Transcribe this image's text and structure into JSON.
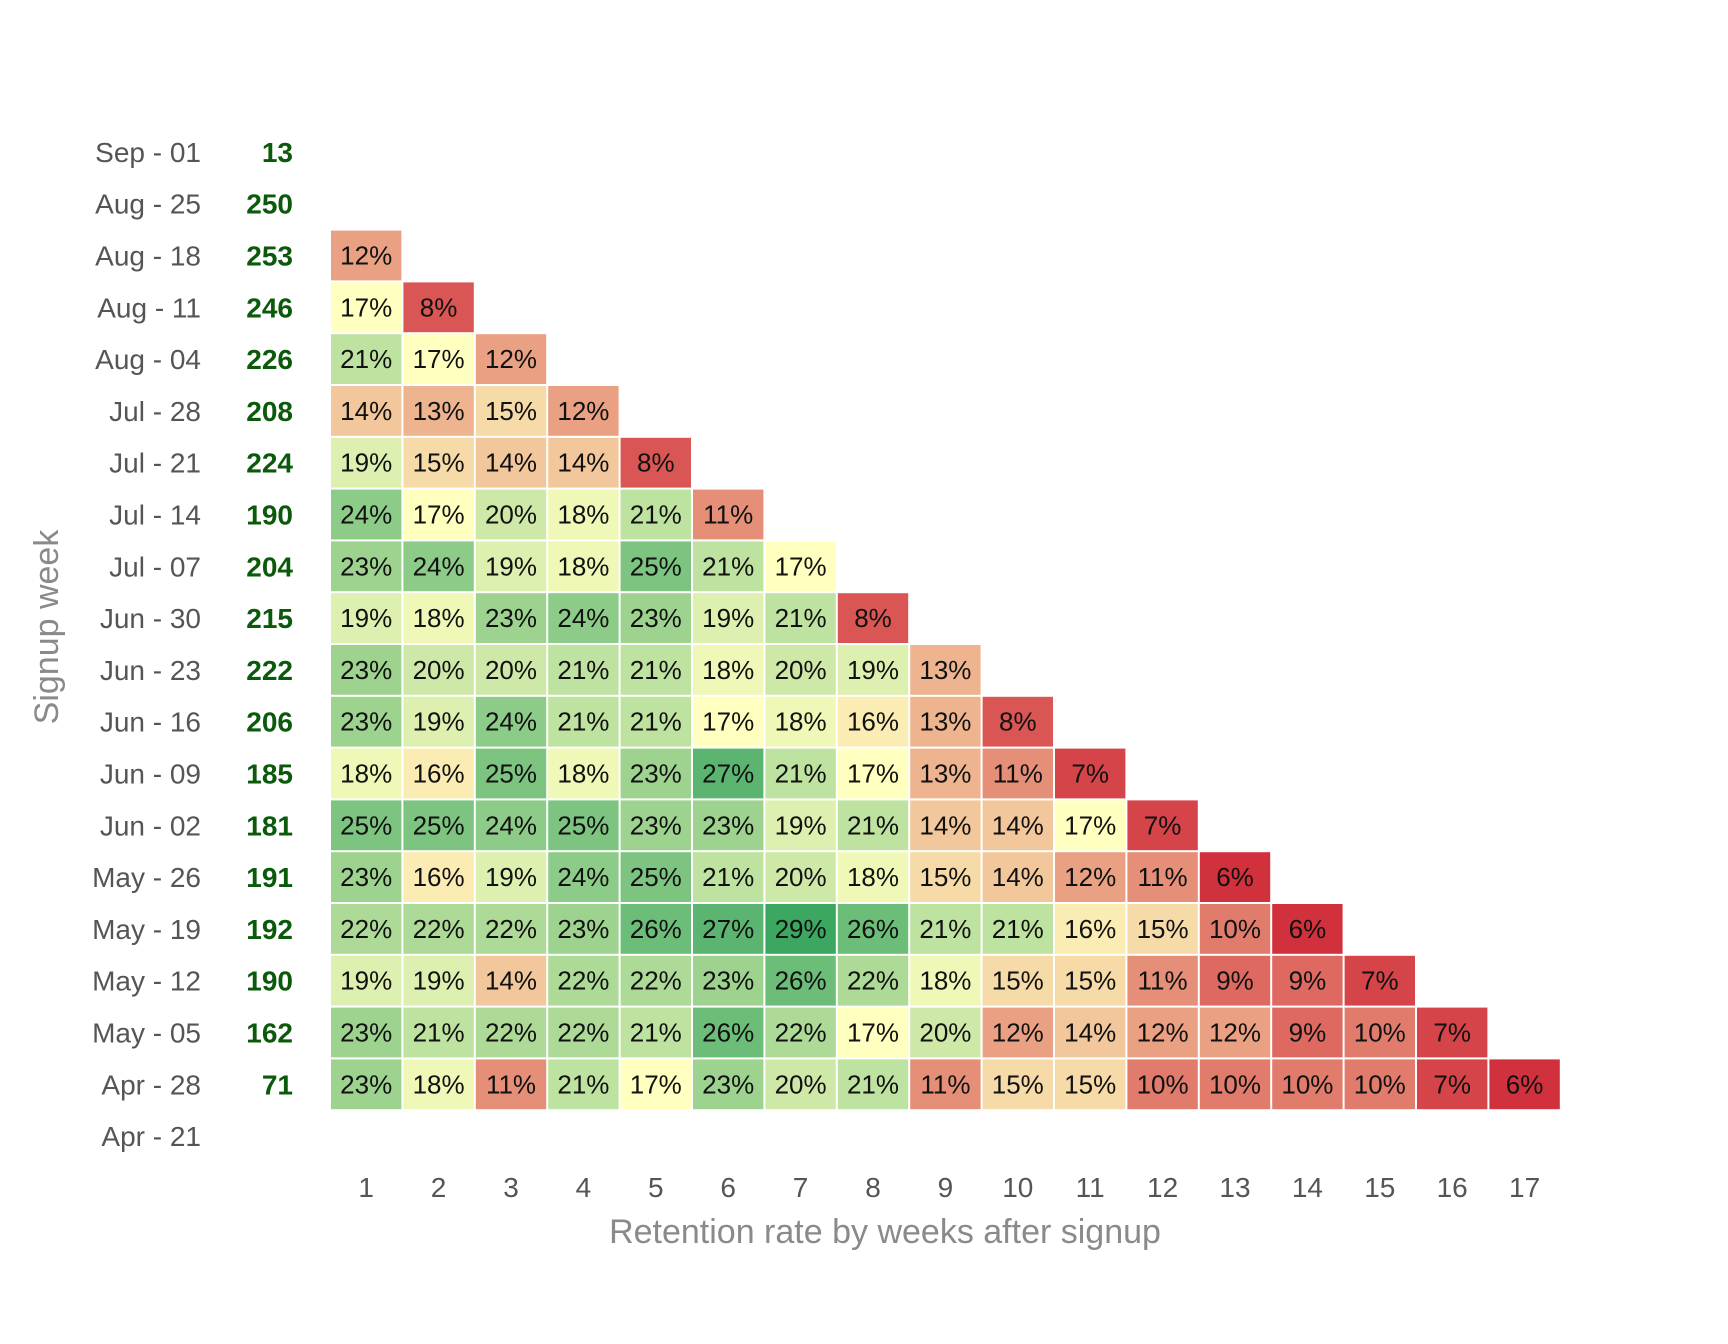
{
  "chart_data": {
    "type": "heatmap",
    "title": "",
    "xlabel": "Retention rate by weeks after signup",
    "ylabel": "Signup week",
    "value_format": "percent",
    "color_scale": {
      "low": "#d0313c",
      "mid": "#ffffbf",
      "high": "#1a9850",
      "min": 6,
      "mid_value": 17,
      "max": 31
    },
    "columns": [
      "1",
      "2",
      "3",
      "4",
      "5",
      "6",
      "7",
      "8",
      "9",
      "10",
      "11",
      "12",
      "13",
      "14",
      "15",
      "16",
      "17"
    ],
    "rows": [
      {
        "week": "Sep - 01",
        "signups": "13",
        "values": []
      },
      {
        "week": "Aug - 25",
        "signups": "250",
        "values": []
      },
      {
        "week": "Aug - 18",
        "signups": "253",
        "values": [
          12
        ]
      },
      {
        "week": "Aug - 11",
        "signups": "246",
        "values": [
          17,
          8
        ]
      },
      {
        "week": "Aug - 04",
        "signups": "226",
        "values": [
          21,
          17,
          12
        ]
      },
      {
        "week": "Jul - 28",
        "signups": "208",
        "values": [
          14,
          13,
          15,
          12
        ]
      },
      {
        "week": "Jul - 21",
        "signups": "224",
        "values": [
          19,
          15,
          14,
          14,
          8
        ]
      },
      {
        "week": "Jul - 14",
        "signups": "190",
        "values": [
          24,
          17,
          20,
          18,
          21,
          11
        ]
      },
      {
        "week": "Jul - 07",
        "signups": "204",
        "values": [
          23,
          24,
          19,
          18,
          25,
          21,
          17
        ]
      },
      {
        "week": "Jun - 30",
        "signups": "215",
        "values": [
          19,
          18,
          23,
          24,
          23,
          19,
          21,
          8
        ]
      },
      {
        "week": "Jun - 23",
        "signups": "222",
        "values": [
          23,
          20,
          20,
          21,
          21,
          18,
          20,
          19,
          13
        ]
      },
      {
        "week": "Jun - 16",
        "signups": "206",
        "values": [
          23,
          19,
          24,
          21,
          21,
          17,
          18,
          16,
          13,
          8
        ]
      },
      {
        "week": "Jun - 09",
        "signups": "185",
        "values": [
          18,
          16,
          25,
          18,
          23,
          27,
          21,
          17,
          13,
          11,
          7
        ]
      },
      {
        "week": "Jun - 02",
        "signups": "181",
        "values": [
          25,
          25,
          24,
          25,
          23,
          23,
          19,
          21,
          14,
          14,
          17,
          7
        ]
      },
      {
        "week": "May - 26",
        "signups": "191",
        "values": [
          23,
          16,
          19,
          24,
          25,
          21,
          20,
          18,
          15,
          14,
          12,
          11,
          6
        ]
      },
      {
        "week": "May - 19",
        "signups": "192",
        "values": [
          22,
          22,
          22,
          23,
          26,
          27,
          29,
          26,
          21,
          21,
          16,
          15,
          10,
          6
        ]
      },
      {
        "week": "May - 12",
        "signups": "190",
        "values": [
          19,
          19,
          14,
          22,
          22,
          23,
          26,
          22,
          18,
          15,
          15,
          11,
          9,
          9,
          7
        ]
      },
      {
        "week": "May - 05",
        "signups": "162",
        "values": [
          23,
          21,
          22,
          22,
          21,
          26,
          22,
          17,
          20,
          12,
          14,
          12,
          12,
          9,
          10,
          7
        ]
      },
      {
        "week": "Apr - 28",
        "signups": "71",
        "values": [
          23,
          18,
          11,
          21,
          17,
          23,
          20,
          21,
          11,
          15,
          15,
          10,
          10,
          10,
          10,
          7,
          6
        ]
      },
      {
        "week": "Apr - 21",
        "signups": "",
        "values": []
      }
    ]
  }
}
